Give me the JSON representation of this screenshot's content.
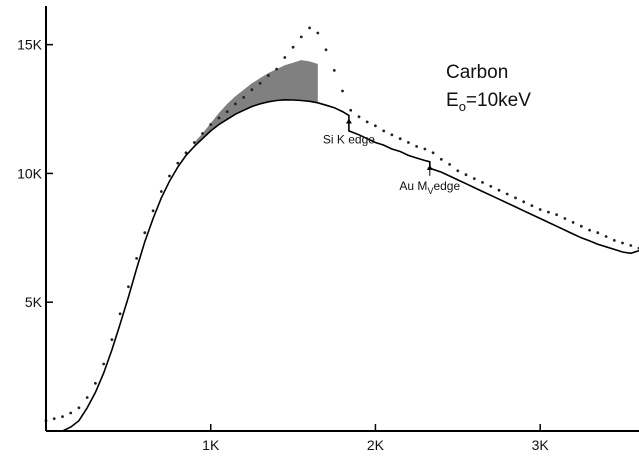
{
  "chart_data": {
    "type": "scatter",
    "title": "Carbon",
    "subtitle": {
      "prefix": "E",
      "sub": "o",
      "suffix": "=10keV"
    },
    "xlabel": "",
    "ylabel": "",
    "xlim": [
      0,
      3600
    ],
    "ylim": [
      0,
      16500
    ],
    "x_ticks": [
      {
        "value": 1000,
        "label": "1K"
      },
      {
        "value": 2000,
        "label": "2K"
      },
      {
        "value": 3000,
        "label": "3K"
      }
    ],
    "y_ticks": [
      {
        "value": 5000,
        "label": "5K"
      },
      {
        "value": 10000,
        "label": "10K"
      },
      {
        "value": 15000,
        "label": "15K"
      }
    ],
    "grid": false,
    "legend": "none",
    "series": [
      {
        "kind": "measured-points",
        "x": [
          0,
          50,
          100,
          150,
          200,
          250,
          300,
          350,
          400,
          450,
          500,
          550,
          600,
          650,
          700,
          750,
          800,
          850,
          900,
          950,
          1000,
          1050,
          1100,
          1150,
          1200,
          1250,
          1300,
          1350,
          1400,
          1450,
          1500,
          1550,
          1600,
          1650,
          1700,
          1750,
          1800,
          1850,
          1900,
          1950,
          2000,
          2050,
          2100,
          2150,
          2200,
          2250,
          2300,
          2350,
          2400,
          2450,
          2500,
          2550,
          2600,
          2650,
          2700,
          2750,
          2800,
          2850,
          2900,
          2950,
          3000,
          3050,
          3100,
          3150,
          3200,
          3250,
          3300,
          3350,
          3400,
          3450,
          3500,
          3550,
          3600
        ],
        "y": [
          400,
          480,
          560,
          700,
          900,
          1300,
          1850,
          2600,
          3550,
          4550,
          5600,
          6700,
          7700,
          8550,
          9300,
          9900,
          10400,
          10800,
          11200,
          11550,
          11900,
          12150,
          12400,
          12700,
          12950,
          13250,
          13500,
          13800,
          14050,
          14500,
          14900,
          15300,
          15650,
          15450,
          14800,
          14000,
          13200,
          12450,
          12200,
          12000,
          11850,
          11650,
          11500,
          11350,
          11200,
          11050,
          10950,
          10800,
          10550,
          10350,
          10100,
          9950,
          9800,
          9650,
          9500,
          9350,
          9200,
          9050,
          8900,
          8750,
          8600,
          8500,
          8400,
          8250,
          8100,
          7950,
          7800,
          7700,
          7550,
          7400,
          7300,
          7200,
          7100
        ]
      },
      {
        "kind": "fitted-continuum",
        "x": [
          100,
          150,
          200,
          250,
          300,
          350,
          400,
          450,
          500,
          550,
          600,
          650,
          700,
          750,
          800,
          850,
          900,
          950,
          1000,
          1050,
          1100,
          1150,
          1200,
          1250,
          1300,
          1350,
          1400,
          1450,
          1500,
          1550,
          1600,
          1650,
          1700,
          1750,
          1800,
          1839,
          1839,
          1900,
          1950,
          2000,
          2050,
          2100,
          2150,
          2200,
          2250,
          2300,
          2330,
          2330,
          2400,
          2450,
          2500,
          2550,
          2600,
          2650,
          2700,
          2750,
          2800,
          2850,
          2900,
          2950,
          3000,
          3050,
          3100,
          3150,
          3200,
          3250,
          3300,
          3350,
          3400,
          3450,
          3500,
          3550,
          3600
        ],
        "y": [
          0,
          150,
          400,
          900,
          1500,
          2250,
          3150,
          4150,
          5200,
          6300,
          7350,
          8250,
          9050,
          9700,
          10250,
          10700,
          11050,
          11350,
          11650,
          11900,
          12100,
          12300,
          12450,
          12600,
          12700,
          12780,
          12830,
          12860,
          12850,
          12830,
          12800,
          12740,
          12650,
          12550,
          12400,
          12250,
          11650,
          11500,
          11350,
          11200,
          11100,
          10950,
          10850,
          10700,
          10600,
          10500,
          10450,
          10200,
          10050,
          9900,
          9750,
          9600,
          9450,
          9300,
          9150,
          9000,
          8850,
          8700,
          8550,
          8400,
          8250,
          8100,
          7950,
          7800,
          7650,
          7500,
          7380,
          7250,
          7150,
          7050,
          6950,
          6900,
          7000
        ]
      }
    ],
    "shaded_region": {
      "x": [
        900,
        950,
        1000,
        1050,
        1100,
        1150,
        1200,
        1250,
        1300,
        1350,
        1400,
        1450,
        1500,
        1550,
        1600,
        1650
      ],
      "upper": [
        11200,
        11550,
        11950,
        12350,
        12700,
        13000,
        13250,
        13500,
        13700,
        13900,
        14050,
        14200,
        14300,
        14400,
        14350,
        14250
      ],
      "lower": [
        11050,
        11350,
        11650,
        11900,
        12100,
        12300,
        12450,
        12600,
        12700,
        12780,
        12830,
        12860,
        12850,
        12830,
        12800,
        12740
      ]
    },
    "annotations": [
      {
        "text": "Si K edge",
        "x": 1839,
        "y": 12250
      },
      {
        "text": "Au M",
        "sub": "V",
        "suffix": "edge",
        "x": 2330,
        "y": 10450
      }
    ]
  }
}
